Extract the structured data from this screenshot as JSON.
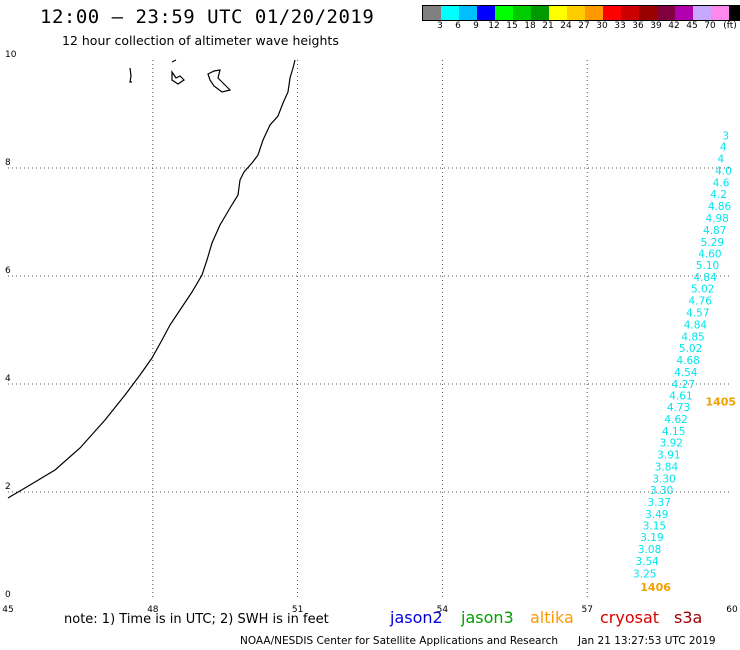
{
  "header": {
    "title": "12:00 — 23:59 UTC 01/20/2019",
    "subtitle": "12 hour collection of altimeter wave heights"
  },
  "colorbar": {
    "colors": [
      "#808080",
      "#00ffff",
      "#00bfff",
      "#0000ff",
      "#00ff00",
      "#00cc00",
      "#009900",
      "#ffff00",
      "#ffcc00",
      "#ff9900",
      "#ff0000",
      "#cc0000",
      "#990000",
      "#800040",
      "#b000b0",
      "#c8a8ff",
      "#ff88ee",
      "#000000"
    ],
    "labels": [
      "3",
      "6",
      "9",
      "12",
      "15",
      "18",
      "21",
      "24",
      "27",
      "30",
      "33",
      "36",
      "39",
      "42",
      "45",
      "70",
      "(ft)"
    ]
  },
  "map": {
    "x_ticks": [
      "45",
      "48",
      "51",
      "54",
      "57",
      "60"
    ],
    "y_ticks": [
      "0",
      "2",
      "4",
      "6",
      "8",
      "10"
    ],
    "swh_points": [
      {
        "lon": 57.95,
        "lat": 0.42,
        "label": "3.25"
      },
      {
        "lon": 58.0,
        "lat": 0.65,
        "label": "3.54"
      },
      {
        "lon": 58.05,
        "lat": 0.87,
        "label": "3.08"
      },
      {
        "lon": 58.1,
        "lat": 1.09,
        "label": "3.19"
      },
      {
        "lon": 58.15,
        "lat": 1.31,
        "label": "3.15"
      },
      {
        "lon": 58.2,
        "lat": 1.52,
        "label": "3.49"
      },
      {
        "lon": 58.25,
        "lat": 1.74,
        "label": "3.37"
      },
      {
        "lon": 58.3,
        "lat": 1.96,
        "label": "3.30"
      },
      {
        "lon": 58.35,
        "lat": 2.18,
        "label": "3.30"
      },
      {
        "lon": 58.4,
        "lat": 2.4,
        "label": "3.84"
      },
      {
        "lon": 58.45,
        "lat": 2.62,
        "label": "3.91"
      },
      {
        "lon": 58.5,
        "lat": 2.84,
        "label": "3.92"
      },
      {
        "lon": 58.55,
        "lat": 3.06,
        "label": "4.15"
      },
      {
        "lon": 58.6,
        "lat": 3.28,
        "label": "4.62"
      },
      {
        "lon": 58.65,
        "lat": 3.5,
        "label": "4.73"
      },
      {
        "lon": 58.7,
        "lat": 3.71,
        "label": "4.61"
      },
      {
        "lon": 58.75,
        "lat": 3.93,
        "label": "4.27"
      },
      {
        "lon": 58.8,
        "lat": 4.15,
        "label": "4.54"
      },
      {
        "lon": 58.85,
        "lat": 4.37,
        "label": "4.68"
      },
      {
        "lon": 58.9,
        "lat": 4.59,
        "label": "5.02"
      },
      {
        "lon": 58.95,
        "lat": 4.81,
        "label": "4.85"
      },
      {
        "lon": 59.0,
        "lat": 5.03,
        "label": "4.84"
      },
      {
        "lon": 59.05,
        "lat": 5.25,
        "label": "4.57"
      },
      {
        "lon": 59.1,
        "lat": 5.47,
        "label": "4.76"
      },
      {
        "lon": 59.15,
        "lat": 5.69,
        "label": "5.02"
      },
      {
        "lon": 59.2,
        "lat": 5.91,
        "label": "4.84"
      },
      {
        "lon": 59.25,
        "lat": 6.13,
        "label": "5.10"
      },
      {
        "lon": 59.3,
        "lat": 6.34,
        "label": "4.60"
      },
      {
        "lon": 59.35,
        "lat": 6.56,
        "label": "5.29"
      },
      {
        "lon": 59.4,
        "lat": 6.78,
        "label": "4.87"
      },
      {
        "lon": 59.45,
        "lat": 7.0,
        "label": "4.98"
      },
      {
        "lon": 59.5,
        "lat": 7.22,
        "label": "4.86"
      },
      {
        "lon": 59.55,
        "lat": 7.44,
        "label": "4.2"
      },
      {
        "lon": 59.6,
        "lat": 7.66,
        "label": "4.6"
      },
      {
        "lon": 59.65,
        "lat": 7.88,
        "label": "4.0"
      },
      {
        "lon": 59.7,
        "lat": 8.1,
        "label": "4"
      },
      {
        "lon": 59.75,
        "lat": 8.32,
        "label": "4"
      },
      {
        "lon": 59.8,
        "lat": 8.53,
        "label": "3"
      }
    ],
    "time_labels": [
      {
        "lon": 58.1,
        "lat": 0.17,
        "label": "1406"
      },
      {
        "lon": 59.45,
        "lat": 3.6,
        "label": "1405"
      }
    ],
    "swh_color": "#00e5ee",
    "time_color": "#f0a000"
  },
  "footer": {
    "note": "note: 1) Time is in UTC; 2) SWH is in feet",
    "legend": [
      {
        "label": "jason2",
        "color": "#0000dd"
      },
      {
        "label": "jason3",
        "color": "#00a000"
      },
      {
        "label": "altika",
        "color": "#ff9900"
      },
      {
        "label": "cryosat",
        "color": "#dd0000"
      },
      {
        "label": "s3a",
        "color": "#990000"
      }
    ],
    "credit": "NOAA/NESDIS Center for Satellite Applications and Research",
    "date": "Jan 21 13:27:53 UTC 2019"
  }
}
